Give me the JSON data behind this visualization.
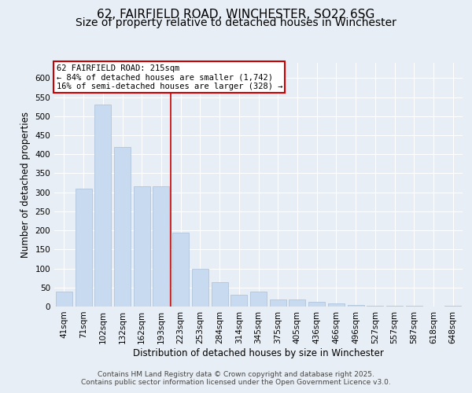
{
  "title_line1": "62, FAIRFIELD ROAD, WINCHESTER, SO22 6SG",
  "title_line2": "Size of property relative to detached houses in Winchester",
  "xlabel": "Distribution of detached houses by size in Winchester",
  "ylabel": "Number of detached properties",
  "categories": [
    "41sqm",
    "71sqm",
    "102sqm",
    "132sqm",
    "162sqm",
    "193sqm",
    "223sqm",
    "253sqm",
    "284sqm",
    "314sqm",
    "345sqm",
    "375sqm",
    "405sqm",
    "436sqm",
    "466sqm",
    "496sqm",
    "527sqm",
    "557sqm",
    "587sqm",
    "618sqm",
    "648sqm"
  ],
  "values": [
    40,
    310,
    530,
    420,
    315,
    315,
    195,
    100,
    65,
    30,
    40,
    18,
    18,
    12,
    8,
    5,
    3,
    2,
    2,
    1,
    2
  ],
  "bar_color": "#c8daf0",
  "bar_edge_color": "#aabfd8",
  "vline_x_index": 6,
  "vline_color": "#cc0000",
  "annotation_text": "62 FAIRFIELD ROAD: 215sqm\n← 84% of detached houses are smaller (1,742)\n16% of semi-detached houses are larger (328) →",
  "annotation_box_color": "#ffffff",
  "annotation_box_edge": "#cc0000",
  "ylim": [
    0,
    640
  ],
  "yticks": [
    0,
    50,
    100,
    150,
    200,
    250,
    300,
    350,
    400,
    450,
    500,
    550,
    600
  ],
  "background_color": "#e8eef5",
  "plot_bg_color": "#e8eef5",
  "footer_line1": "Contains HM Land Registry data © Crown copyright and database right 2025.",
  "footer_line2": "Contains public sector information licensed under the Open Government Licence v3.0.",
  "title_fontsize": 11,
  "subtitle_fontsize": 10,
  "axis_label_fontsize": 8.5,
  "tick_fontsize": 7.5,
  "annotation_fontsize": 7.5,
  "footer_fontsize": 6.5
}
